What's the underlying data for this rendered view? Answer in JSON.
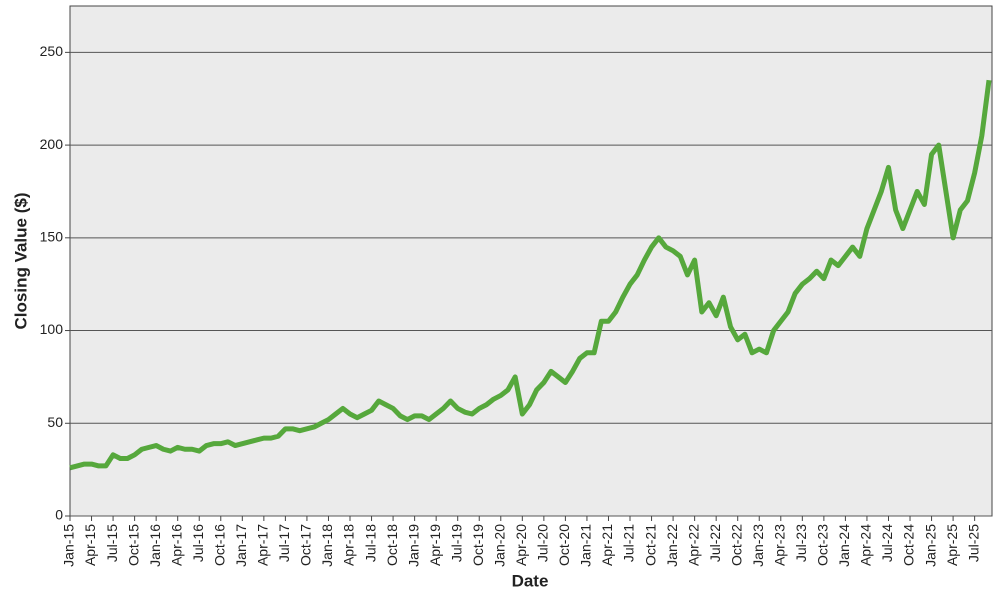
{
  "chart_data": {
    "type": "line",
    "x_label": "Date",
    "y_label": "Closing Value ($)",
    "x": [
      "2015-01",
      "2015-02",
      "2015-03",
      "2015-04",
      "2015-05",
      "2015-06",
      "2015-07",
      "2015-08",
      "2015-09",
      "2015-10",
      "2015-11",
      "2015-12",
      "2016-01",
      "2016-02",
      "2016-03",
      "2016-04",
      "2016-05",
      "2016-06",
      "2016-07",
      "2016-08",
      "2016-09",
      "2016-10",
      "2016-11",
      "2016-12",
      "2017-01",
      "2017-02",
      "2017-03",
      "2017-04",
      "2017-05",
      "2017-06",
      "2017-07",
      "2017-08",
      "2017-09",
      "2017-10",
      "2017-11",
      "2017-12",
      "2018-01",
      "2018-02",
      "2018-03",
      "2018-04",
      "2018-05",
      "2018-06",
      "2018-07",
      "2018-08",
      "2018-09",
      "2018-10",
      "2018-11",
      "2018-12",
      "2019-01",
      "2019-02",
      "2019-03",
      "2019-04",
      "2019-05",
      "2019-06",
      "2019-07",
      "2019-08",
      "2019-09",
      "2019-10",
      "2019-11",
      "2019-12",
      "2020-01",
      "2020-02",
      "2020-03",
      "2020-04",
      "2020-05",
      "2020-06",
      "2020-07",
      "2020-08",
      "2020-09",
      "2020-10",
      "2020-11",
      "2020-12",
      "2021-01",
      "2021-02",
      "2021-03",
      "2021-04",
      "2021-05",
      "2021-06",
      "2021-07",
      "2021-08",
      "2021-09",
      "2021-10",
      "2021-11",
      "2021-12",
      "2022-01",
      "2022-02",
      "2022-03",
      "2022-04",
      "2022-05",
      "2022-06",
      "2022-07",
      "2022-08",
      "2022-09",
      "2022-10",
      "2022-11",
      "2022-12",
      "2023-01",
      "2023-02",
      "2023-03",
      "2023-04",
      "2023-05",
      "2023-06",
      "2023-07",
      "2023-08",
      "2023-09",
      "2023-10",
      "2023-11",
      "2023-12",
      "2024-01",
      "2024-02",
      "2024-03",
      "2024-04",
      "2024-05",
      "2024-06",
      "2024-07",
      "2024-08",
      "2024-09",
      "2024-10",
      "2024-11",
      "2024-12",
      "2025-01",
      "2025-02",
      "2025-03",
      "2025-04",
      "2025-05",
      "2025-06",
      "2025-07",
      "2025-08",
      "2025-09"
    ],
    "values": [
      26,
      27,
      28,
      28,
      27,
      27,
      33,
      31,
      31,
      33,
      36,
      37,
      38,
      36,
      35,
      37,
      36,
      36,
      35,
      38,
      39,
      39,
      40,
      38,
      39,
      40,
      41,
      42,
      42,
      43,
      47,
      47,
      46,
      47,
      48,
      50,
      52,
      55,
      58,
      55,
      53,
      55,
      57,
      62,
      60,
      58,
      54,
      52,
      54,
      54,
      52,
      55,
      58,
      62,
      58,
      56,
      55,
      58,
      60,
      63,
      65,
      68,
      75,
      55,
      60,
      68,
      72,
      78,
      75,
      72,
      78,
      85,
      88,
      88,
      105,
      105,
      110,
      118,
      125,
      130,
      138,
      145,
      150,
      145,
      143,
      140,
      130,
      138,
      110,
      115,
      108,
      118,
      102,
      95,
      98,
      88,
      90,
      88,
      100,
      105,
      110,
      120,
      125,
      128,
      132,
      128,
      138,
      135,
      140,
      145,
      140,
      155,
      165,
      175,
      188,
      165,
      155,
      165,
      175,
      168,
      195,
      200,
      175,
      150,
      165,
      170,
      185,
      205,
      235
    ],
    "color": "#56a83c",
    "xlim": [
      "2015-01",
      "2025-09"
    ],
    "xticks": [
      {
        "value": "2015-01",
        "label": "Jan-15"
      },
      {
        "value": "2015-04",
        "label": "Apr-15"
      },
      {
        "value": "2015-07",
        "label": "Jul-15"
      },
      {
        "value": "2015-10",
        "label": "Oct-15"
      },
      {
        "value": "2016-01",
        "label": "Jan-16"
      },
      {
        "value": "2016-04",
        "label": "Apr-16"
      },
      {
        "value": "2016-07",
        "label": "Jul-16"
      },
      {
        "value": "2016-10",
        "label": "Oct-16"
      },
      {
        "value": "2017-01",
        "label": "Jan-17"
      },
      {
        "value": "2017-04",
        "label": "Apr-17"
      },
      {
        "value": "2017-07",
        "label": "Jul-17"
      },
      {
        "value": "2017-10",
        "label": "Oct-17"
      },
      {
        "value": "2018-01",
        "label": "Jan-18"
      },
      {
        "value": "2018-04",
        "label": "Apr-18"
      },
      {
        "value": "2018-07",
        "label": "Jul-18"
      },
      {
        "value": "2018-10",
        "label": "Oct-18"
      },
      {
        "value": "2019-01",
        "label": "Jan-19"
      },
      {
        "value": "2019-04",
        "label": "Apr-19"
      },
      {
        "value": "2019-07",
        "label": "Jul-19"
      },
      {
        "value": "2019-10",
        "label": "Oct-19"
      },
      {
        "value": "2020-01",
        "label": "Jan-20"
      },
      {
        "value": "2020-04",
        "label": "Apr-20"
      },
      {
        "value": "2020-07",
        "label": "Jul-20"
      },
      {
        "value": "2020-10",
        "label": "Oct-20"
      },
      {
        "value": "2021-01",
        "label": "Jan-21"
      },
      {
        "value": "2021-04",
        "label": "Apr-21"
      },
      {
        "value": "2021-07",
        "label": "Jul-21"
      },
      {
        "value": "2021-10",
        "label": "Oct-21"
      },
      {
        "value": "2022-01",
        "label": "Jan-22"
      },
      {
        "value": "2022-04",
        "label": "Apr-22"
      },
      {
        "value": "2022-07",
        "label": "Jul-22"
      },
      {
        "value": "2022-10",
        "label": "Oct-22"
      },
      {
        "value": "2023-01",
        "label": "Jan-23"
      },
      {
        "value": "2023-04",
        "label": "Apr-23"
      },
      {
        "value": "2023-07",
        "label": "Jul-23"
      },
      {
        "value": "2023-10",
        "label": "Oct-23"
      },
      {
        "value": "2024-01",
        "label": "Jan-24"
      },
      {
        "value": "2024-04",
        "label": "Apr-24"
      },
      {
        "value": "2024-07",
        "label": "Jul-24"
      },
      {
        "value": "2024-10",
        "label": "Oct-24"
      },
      {
        "value": "2025-01",
        "label": "Jan-25"
      },
      {
        "value": "2025-04",
        "label": "Apr-25"
      },
      {
        "value": "2025-07",
        "label": "Jul-25"
      }
    ],
    "ylim": [
      0,
      275
    ],
    "yticks": [
      0,
      50,
      100,
      150,
      200,
      250
    ],
    "grid": true
  }
}
